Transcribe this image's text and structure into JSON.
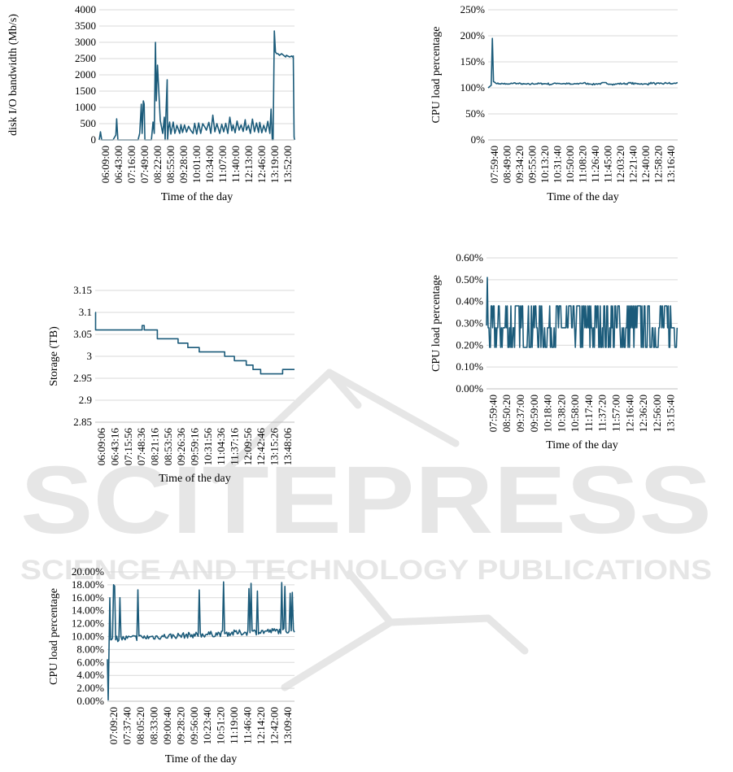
{
  "watermark": {
    "brand": "SCITEPRESS",
    "tagline": "SCIENCE AND TECHNOLOGY PUBLICATIONS"
  },
  "colors": {
    "series": "#1b5b7a",
    "grid": "#d9d9d9",
    "axis": "#bfbfbf",
    "watermark": "#e6e6e6"
  },
  "chart_data": [
    {
      "id": "disk-io",
      "type": "line",
      "xlabel": "Time of the day",
      "ylabel": "disk I/O bandwidth (Mb/s)",
      "ylim": [
        0,
        4000
      ],
      "y_ticks": [
        0,
        500,
        1000,
        1500,
        2000,
        2500,
        3000,
        3500,
        4000
      ],
      "y_tick_labels": [
        "0",
        "500",
        "1000",
        "1500",
        "2000",
        "2500",
        "3000",
        "3500",
        "4000"
      ],
      "x_tick_labels": [
        "06:09:00",
        "06:43:00",
        "07:16:00",
        "07:49:00",
        "08:22:00",
        "08:55:00",
        "09:28:00",
        "10:01:00",
        "10:34:00",
        "11:07:00",
        "11:40:00",
        "12:13:00",
        "12:46:00",
        "13:19:00",
        "13:52:00"
      ],
      "grid": true,
      "series": [
        {
          "x": [
            "06:09:00",
            "06:12:00",
            "06:15:00",
            "06:43:00",
            "06:50:00",
            "06:52:00",
            "06:55:00",
            "07:16:00",
            "07:45:00",
            "07:49:00",
            "07:53:00",
            "07:55:00",
            "07:58:00",
            "08:00:00",
            "08:02:00",
            "08:18:00",
            "08:22:00",
            "08:25:00",
            "08:28:00",
            "08:30:00",
            "08:33:00",
            "08:40:00",
            "08:46:00",
            "08:50:00",
            "08:52:00",
            "08:53:00",
            "08:55:00",
            "08:57:00",
            "08:58:00",
            "09:00:00",
            "09:03:00",
            "09:06:00",
            "09:12:00",
            "09:16:00",
            "09:18:00",
            "09:21:00",
            "09:24:00",
            "09:28:00",
            "09:31:00",
            "09:35:00",
            "09:40:00",
            "09:45:00",
            "09:50:00",
            "09:55:00",
            "10:01:00",
            "10:05:00",
            "10:10:00",
            "10:15:00",
            "10:20:00",
            "10:25:00",
            "10:30:00",
            "10:34:00",
            "10:40:00",
            "10:45:00",
            "10:50:00",
            "10:55:00",
            "11:00:00",
            "11:07:00",
            "11:12:00",
            "11:17:00",
            "11:22:00",
            "11:27:00",
            "11:32:00",
            "11:37:00",
            "11:40:00",
            "11:45:00",
            "11:50:00",
            "11:55:00",
            "12:00:00",
            "12:05:00",
            "12:10:00",
            "12:13:00",
            "12:18:00",
            "12:23:00",
            "12:28:00",
            "12:33:00",
            "12:38:00",
            "12:43:00",
            "12:46:00",
            "12:51:00",
            "12:56:00",
            "13:01:00",
            "13:06:00",
            "13:11:00",
            "13:14:00",
            "13:17:00",
            "13:19:00",
            "13:22:00",
            "13:25:00",
            "13:28:00",
            "13:31:00",
            "13:35:00",
            "13:40:00",
            "13:45:00",
            "13:50:00",
            "13:52:00",
            "14:00:00",
            "14:05:00",
            "14:07:00",
            "14:09:00",
            "14:11:00",
            "14:12:00"
          ],
          "values": [
            0,
            250,
            0,
            0,
            150,
            650,
            0,
            0,
            0,
            200,
            1100,
            200,
            1200,
            1100,
            0,
            0,
            550,
            200,
            3000,
            1200,
            2300,
            600,
            200,
            700,
            0,
            450,
            1150,
            1850,
            0,
            350,
            550,
            180,
            550,
            200,
            280,
            450,
            350,
            200,
            470,
            230,
            460,
            240,
            420,
            300,
            200,
            510,
            180,
            520,
            200,
            500,
            400,
            300,
            540,
            200,
            760,
            250,
            500,
            200,
            480,
            250,
            510,
            200,
            700,
            280,
            460,
            220,
            580,
            300,
            460,
            260,
            620,
            300,
            450,
            200,
            640,
            250,
            520,
            230,
            540,
            220,
            450,
            250,
            570,
            200,
            950,
            0,
            0,
            3350,
            2700,
            2650,
            2650,
            2600,
            2650,
            2600,
            2550,
            2600,
            2550,
            2580,
            2550,
            2580,
            100,
            0
          ]
        }
      ]
    },
    {
      "id": "cpu-load-1",
      "type": "line",
      "xlabel": "Time of the day",
      "ylabel": "CPU load percentage",
      "ylim": [
        0,
        250
      ],
      "y_ticks": [
        0,
        50,
        100,
        150,
        200,
        250
      ],
      "y_tick_labels": [
        "0%",
        "50%",
        "100%",
        "150%",
        "200%",
        "250%"
      ],
      "x_tick_labels": [
        "07:59:40",
        "08:49:00",
        "09:34:20",
        "09:55:00",
        "10:13:20",
        "10:31:40",
        "10:50:00",
        "11:08:20",
        "11:26:40",
        "11:45:00",
        "12:03:20",
        "12:21:40",
        "12:40:00",
        "12:58:20",
        "13:16:40"
      ],
      "grid": true,
      "series": [
        {
          "x": [
            "07:59:40",
            "08:05:00",
            "08:07:00",
            "08:09:00",
            "08:12:00",
            "08:15:00",
            "08:20:00",
            "08:30:00",
            "08:40:00",
            "08:49:00",
            "09:00:00",
            "09:15:00",
            "09:34:20",
            "09:45:00",
            "09:55:00",
            "10:05:00",
            "10:13:20",
            "10:22:00",
            "10:31:40",
            "10:40:00",
            "10:50:00",
            "11:00:00",
            "11:08:20",
            "11:17:00",
            "11:26:40",
            "11:35:00",
            "11:45:00",
            "11:55:00",
            "12:03:20",
            "12:12:00",
            "12:21:40",
            "12:30:00",
            "12:40:00",
            "12:50:00",
            "12:58:20",
            "13:07:00",
            "13:16:40",
            "13:25:00",
            "13:30:00"
          ],
          "values": [
            100,
            105,
            195,
            112,
            110,
            108,
            108,
            107,
            109,
            108,
            107,
            108,
            108,
            107,
            109,
            108,
            108,
            107,
            108,
            109,
            108,
            107,
            108,
            109,
            108,
            107,
            108,
            108,
            109,
            108,
            108,
            107,
            109,
            108,
            108,
            109,
            108,
            109,
            110
          ]
        }
      ]
    },
    {
      "id": "storage",
      "type": "line",
      "xlabel": "Time of the day",
      "ylabel": "Storage (TB)",
      "ylim": [
        2.85,
        3.15
      ],
      "y_ticks": [
        2.85,
        2.9,
        2.95,
        3,
        3.05,
        3.1,
        3.15
      ],
      "y_tick_labels": [
        "2.85",
        "2.9",
        "2.95",
        "3",
        "3.05",
        "3.1",
        "3.15"
      ],
      "x_tick_labels": [
        "06:09:06",
        "06:43:16",
        "07:15:56",
        "07:48:36",
        "08:21:16",
        "08:53:56",
        "09:26:36",
        "09:59:16",
        "10:31:56",
        "11:04:36",
        "11:37:16",
        "12:09:56",
        "12:42:46",
        "13:15:26",
        "13:48:06"
      ],
      "grid": true,
      "step": true,
      "series": [
        {
          "x": [
            "06:09:06",
            "06:10:00",
            "08:00:00",
            "08:05:00",
            "08:22:00",
            "08:36:00",
            "09:25:00",
            "09:48:00",
            "10:15:00",
            "10:44:00",
            "11:15:00",
            "11:38:00",
            "12:06:00",
            "12:22:00",
            "12:40:00",
            "13:00:00",
            "13:32:00",
            "13:46:00",
            "14:00:00"
          ],
          "values": [
            3.1,
            3.06,
            3.07,
            3.06,
            3.06,
            3.04,
            3.03,
            3.02,
            3.01,
            3.01,
            3.0,
            2.99,
            2.98,
            2.97,
            2.96,
            2.96,
            2.97,
            2.97,
            2.97
          ]
        }
      ]
    },
    {
      "id": "cpu-load-2",
      "type": "line",
      "xlabel": "Time of the day",
      "ylabel": "CPU load percentage",
      "ylim": [
        0,
        0.6
      ],
      "y_ticks": [
        0,
        0.1,
        0.2,
        0.3,
        0.4,
        0.5,
        0.6
      ],
      "y_tick_labels": [
        "0.00%",
        "0.10%",
        "0.20%",
        "0.30%",
        "0.40%",
        "0.50%",
        "0.60%"
      ],
      "x_tick_labels": [
        "07:59:40",
        "08:50:20",
        "09:37:00",
        "09:59:00",
        "10:18:40",
        "10:38:20",
        "10:58:00",
        "11:17:40",
        "11:37:20",
        "11:57:00",
        "12:16:40",
        "12:36:20",
        "12:56:00",
        "13:15:40"
      ],
      "grid": true,
      "series": [
        {
          "x": [
            "07:59:40",
            "08:50:20",
            "09:37:00",
            "09:59:00",
            "10:18:40",
            "10:38:20",
            "10:58:00",
            "11:17:40",
            "11:37:20",
            "11:57:00",
            "12:16:40",
            "12:36:20",
            "12:56:00",
            "13:15:40",
            "13:30:00"
          ],
          "values": [
            0.51,
            0.28,
            0.38,
            0.19,
            0.29,
            0.39,
            0.2,
            0.38,
            0.28,
            0.19,
            0.39,
            0.29,
            0.2,
            0.38,
            0.3
          ]
        }
      ]
    },
    {
      "id": "cpu-load-3",
      "type": "line",
      "xlabel": "Time of the day",
      "ylabel": "CPU load percentage",
      "ylim": [
        0,
        20
      ],
      "y_ticks": [
        0,
        2,
        4,
        6,
        8,
        10,
        12,
        14,
        16,
        18,
        20
      ],
      "y_tick_labels": [
        "0.00%",
        "2.00%",
        "4.00%",
        "6.00%",
        "8.00%",
        "10.00%",
        "12.00%",
        "14.00%",
        "16.00%",
        "18.00%",
        "20.00%"
      ],
      "x_tick_labels": [
        "07:09:20",
        "07:37:40",
        "08:05:20",
        "08:33:00",
        "09:00:40",
        "09:28:20",
        "09:56:00",
        "10:23:40",
        "10:51:20",
        "11:19:00",
        "11:46:40",
        "12:14:20",
        "12:42:00",
        "13:09:40"
      ],
      "grid": true,
      "series": [
        {
          "x": [
            "07:09:20",
            "07:10:00",
            "07:12:00",
            "07:14:00",
            "07:37:40",
            "08:05:20",
            "08:33:00",
            "09:00:40",
            "09:28:20",
            "09:56:00",
            "10:23:40",
            "10:51:20",
            "11:19:00",
            "11:46:40",
            "12:14:20",
            "12:42:00",
            "13:09:40",
            "13:25:00"
          ],
          "values": [
            6.5,
            0.2,
            16,
            9.5,
            10,
            9.8,
            9.5,
            9.6,
            9.9,
            10.2,
            10.3,
            10.2,
            10.4,
            10.5,
            10.6,
            10.7,
            10.8,
            11
          ]
        }
      ]
    }
  ]
}
